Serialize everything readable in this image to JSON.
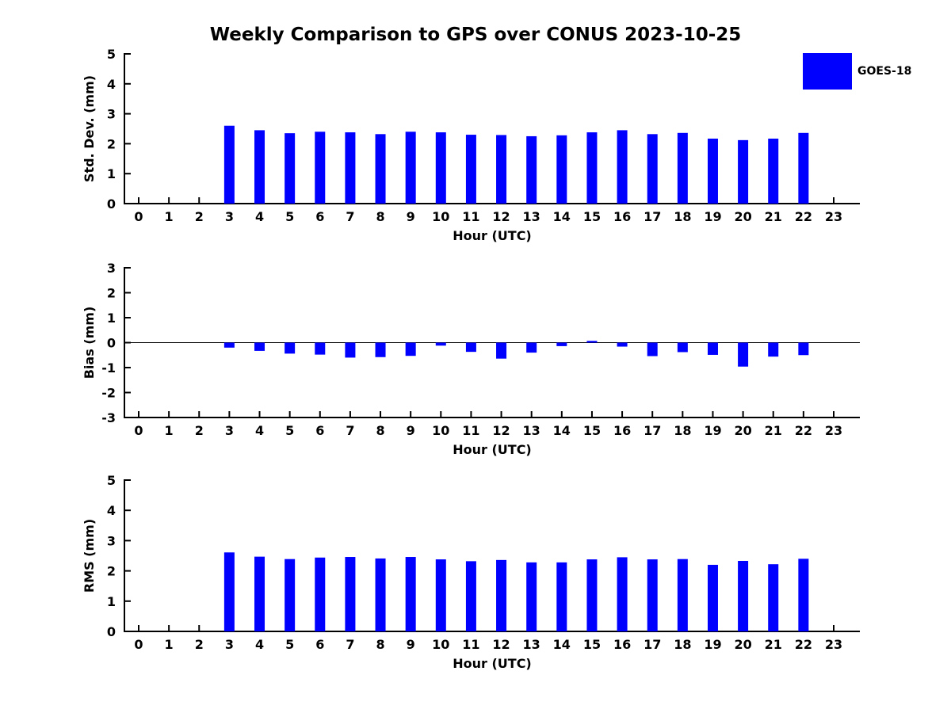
{
  "title": "Weekly Comparison to GPS over CONUS 2023-10-25",
  "legend": {
    "label": "GOES-18",
    "color": "#0000FF",
    "position": "top-right"
  },
  "chart_data": [
    {
      "type": "bar",
      "series_name": "GOES-18",
      "ylabel": "Std. Dev. (mm)",
      "xlabel": "Hour (UTC)",
      "ylim": [
        0,
        5
      ],
      "yticks": [
        0,
        1,
        2,
        3,
        4,
        5
      ],
      "x": [
        0,
        1,
        2,
        3,
        4,
        5,
        6,
        7,
        8,
        9,
        10,
        11,
        12,
        13,
        14,
        15,
        16,
        17,
        18,
        19,
        20,
        21,
        22,
        23
      ],
      "values": [
        null,
        null,
        null,
        2.6,
        2.45,
        2.35,
        2.4,
        2.38,
        2.32,
        2.4,
        2.38,
        2.3,
        2.29,
        2.25,
        2.28,
        2.38,
        2.45,
        2.32,
        2.36,
        2.17,
        2.12,
        2.17,
        2.36,
        null
      ],
      "bar_color": "#0000FF",
      "zero_line": false,
      "grid": false
    },
    {
      "type": "bar",
      "series_name": "GOES-18",
      "ylabel": "Bias (mm)",
      "xlabel": "Hour (UTC)",
      "ylim": [
        -3,
        3
      ],
      "yticks": [
        3,
        2,
        1,
        0,
        -1,
        -2,
        -3
      ],
      "x": [
        0,
        1,
        2,
        3,
        4,
        5,
        6,
        7,
        8,
        9,
        10,
        11,
        12,
        13,
        14,
        15,
        16,
        17,
        18,
        19,
        20,
        21,
        22,
        23
      ],
      "values": [
        null,
        null,
        null,
        -0.2,
        -0.33,
        -0.44,
        -0.48,
        -0.6,
        -0.58,
        -0.53,
        -0.12,
        -0.37,
        -0.64,
        -0.4,
        -0.14,
        0.07,
        -0.16,
        -0.54,
        -0.38,
        -0.49,
        -0.96,
        -0.56,
        -0.5,
        null
      ],
      "bar_color": "#0000FF",
      "zero_line": true,
      "grid": false
    },
    {
      "type": "bar",
      "series_name": "GOES-18",
      "ylabel": "RMS (mm)",
      "xlabel": "Hour (UTC)",
      "ylim": [
        0,
        5
      ],
      "yticks": [
        0,
        1,
        2,
        3,
        4,
        5
      ],
      "x": [
        0,
        1,
        2,
        3,
        4,
        5,
        6,
        7,
        8,
        9,
        10,
        11,
        12,
        13,
        14,
        15,
        16,
        17,
        18,
        19,
        20,
        21,
        22,
        23
      ],
      "values": [
        null,
        null,
        null,
        2.61,
        2.47,
        2.39,
        2.44,
        2.46,
        2.41,
        2.46,
        2.38,
        2.32,
        2.36,
        2.28,
        2.28,
        2.38,
        2.45,
        2.38,
        2.39,
        2.2,
        2.33,
        2.22,
        2.4,
        null
      ],
      "bar_color": "#0000FF",
      "zero_line": false,
      "grid": false
    }
  ]
}
